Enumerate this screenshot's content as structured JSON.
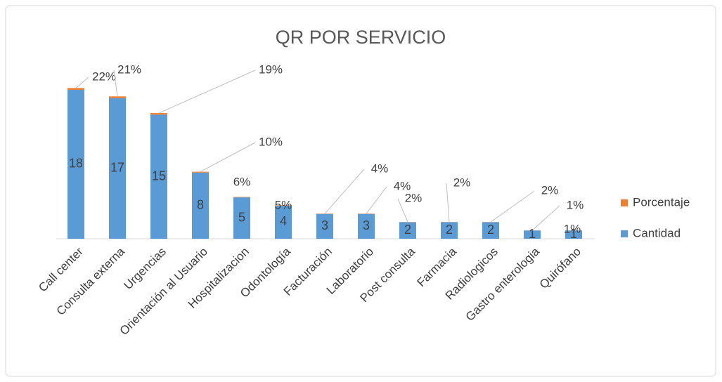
{
  "chart_data": {
    "type": "stacked-bar",
    "title": "QR POR SERVICIO",
    "categories": [
      "Call center",
      "Consulta externa",
      "Urgencias",
      "Orientación al Usuario",
      "Hospitalizacion",
      "Odontología",
      "Facturación",
      "Laboratorio",
      "Post consulta",
      "Farmacia",
      "Radiologicos",
      "Gastro enterologia",
      "Quirófano"
    ],
    "series": [
      {
        "name": "Cantidad",
        "color": "#5b9bd5",
        "values": [
          18,
          17,
          15,
          8,
          5,
          4,
          3,
          3,
          2,
          2,
          2,
          1,
          1
        ]
      },
      {
        "name": "Porcentaje",
        "color": "#ed7d31",
        "values": [
          0.22,
          0.21,
          0.19,
          0.1,
          0.06,
          0.05,
          0.04,
          0.04,
          0.02,
          0.02,
          0.02,
          0.01,
          0.01
        ],
        "value_labels": [
          "22%",
          "21%",
          "19%",
          "10%",
          "6%",
          "5%",
          "4%",
          "4%",
          "2%",
          "2%",
          "2%",
          "1%",
          "1%"
        ]
      }
    ],
    "ylim": [
      0,
      20
    ],
    "legend": "right"
  }
}
